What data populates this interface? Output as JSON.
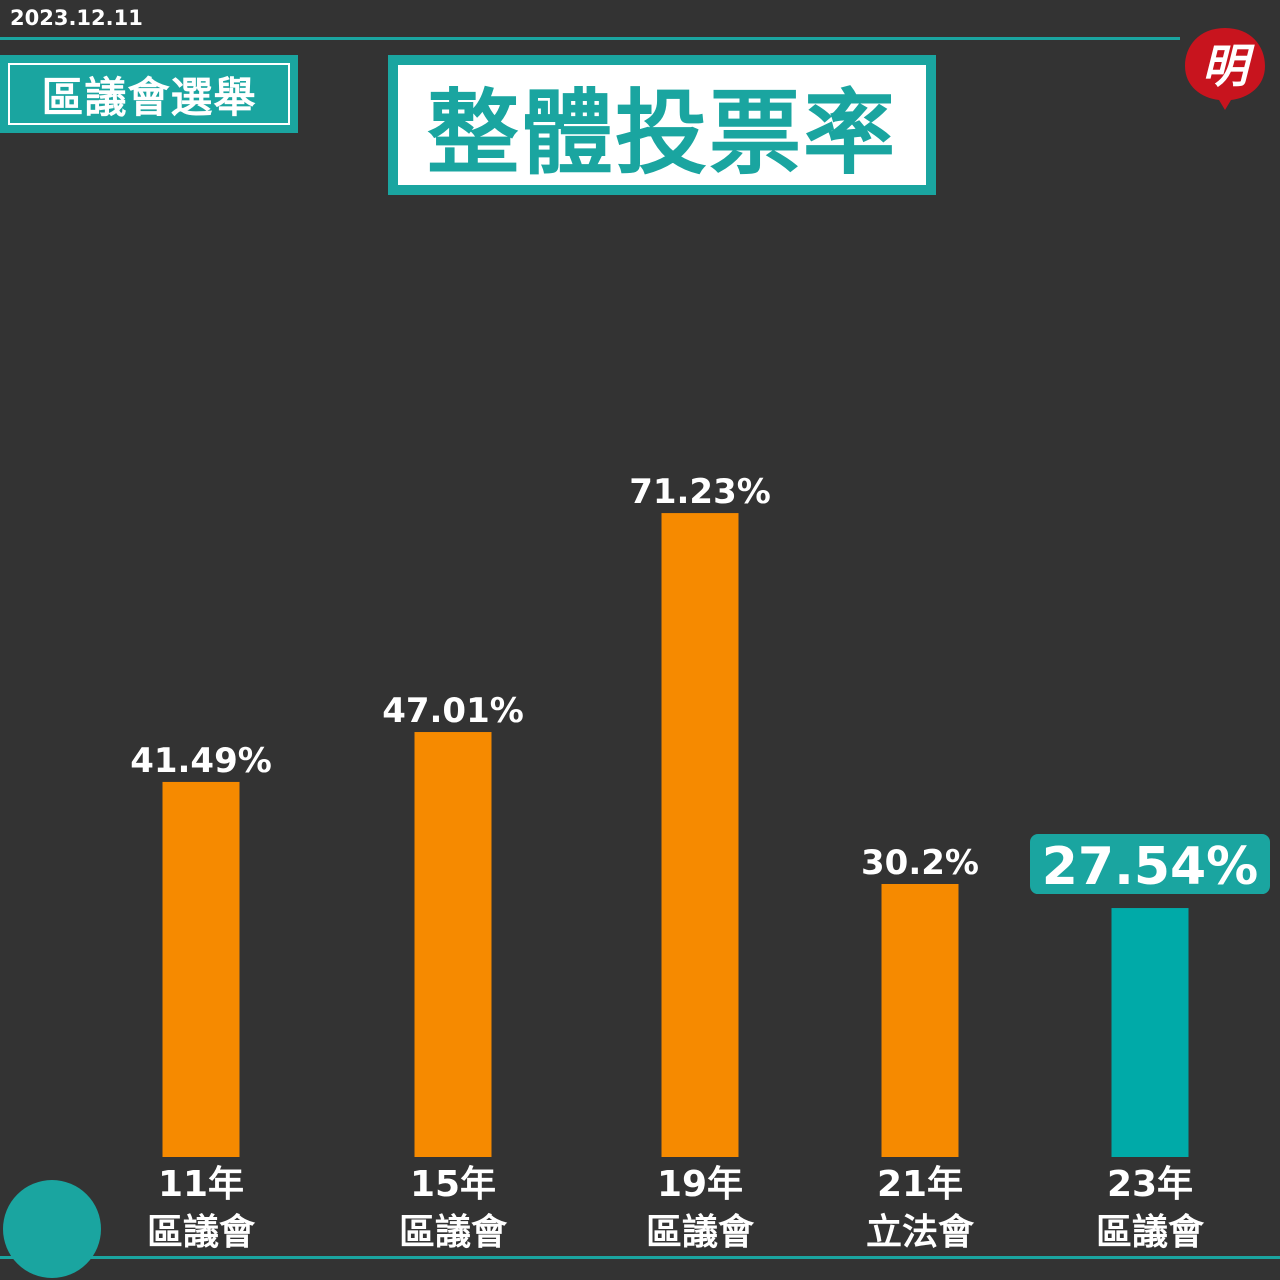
{
  "date": "2023.12.11",
  "tag": "區議會選舉",
  "title": "整體投票率",
  "logo_char": "明",
  "colors": {
    "background": "#333333",
    "accent": "#1aa5a0",
    "bar": "#f68a00",
    "highlight_bar": "#00aaa8",
    "logo": "#c8141e"
  },
  "chart_data": {
    "type": "bar",
    "title": "整體投票率",
    "categories": [
      {
        "year": "11年",
        "body": "區議會"
      },
      {
        "year": "15年",
        "body": "區議會"
      },
      {
        "year": "19年",
        "body": "區議會"
      },
      {
        "year": "21年",
        "body": "立法會"
      },
      {
        "year": "23年",
        "body": "區議會"
      }
    ],
    "values": [
      41.49,
      47.01,
      71.23,
      30.2,
      27.54
    ],
    "labels": [
      "41.49%",
      "47.01%",
      "71.23%",
      "30.2%",
      "27.54%"
    ],
    "highlight_index": 4,
    "ylim": [
      0,
      100
    ],
    "grid": false
  }
}
